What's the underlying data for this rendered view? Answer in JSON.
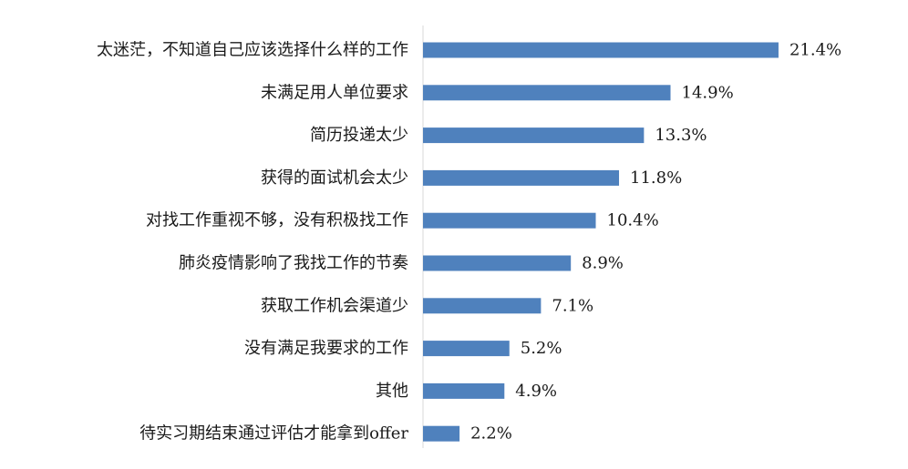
{
  "chart_data": {
    "type": "bar",
    "orientation": "horizontal",
    "title": "",
    "xlabel": "",
    "ylabel": "",
    "categories": [
      "太迷茫，不知道自己应该选择什么样的工作",
      "未满足用人单位要求",
      "简历投递太少",
      "获得的面试机会太少",
      "对找工作重视不够，没有积极找工作",
      "肺炎疫情影响了我找工作的节奏",
      "获取工作机会渠道少",
      "没有满足我要求的工作",
      "其他",
      "待实习期结束通过评估才能拿到offer"
    ],
    "values": [
      21.4,
      14.9,
      13.3,
      11.8,
      10.4,
      8.9,
      7.1,
      5.2,
      4.9,
      2.2
    ],
    "value_labels": [
      "21.4%",
      "14.9%",
      "13.3%",
      "11.8%",
      "10.4%",
      "8.9%",
      "7.1%",
      "5.2%",
      "4.9%",
      "2.2%"
    ],
    "unit": "%",
    "xlim": [
      0,
      22.5
    ],
    "grid": false,
    "legend": "none",
    "bar_color": "#4f81bd",
    "axis_color": "#d9d9d9"
  }
}
